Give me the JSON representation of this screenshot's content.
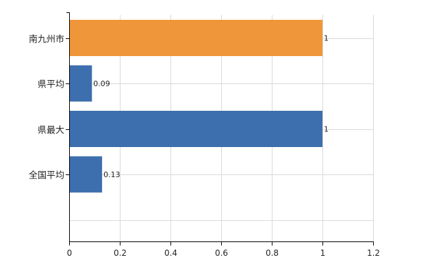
{
  "chart_data": {
    "type": "bar",
    "orientation": "horizontal",
    "categories": [
      "南九州市",
      "県平均",
      "県最大",
      "全国平均"
    ],
    "values": [
      1,
      0.09,
      1,
      0.13
    ],
    "data_labels": [
      "1",
      "0.09",
      "1",
      "0.13"
    ],
    "bar_colors": [
      "#F0963A",
      "#3D6FAE",
      "#3D6FAE",
      "#3D6FAE"
    ],
    "xlim": [
      0,
      1.2
    ],
    "x_ticks": [
      0,
      0.2,
      0.4,
      0.6,
      0.8,
      1,
      1.2
    ],
    "x_tick_labels": [
      "0",
      "0.2",
      "0.4",
      "0.6",
      "0.8",
      "1",
      "1.2"
    ],
    "grid": true,
    "legend": "none",
    "title": "",
    "xlabel": "",
    "ylabel": ""
  },
  "colors": {
    "grid": "#d9d9d9",
    "axis": "#000000",
    "highlight": "#F0963A",
    "primary": "#3D6FAE"
  }
}
